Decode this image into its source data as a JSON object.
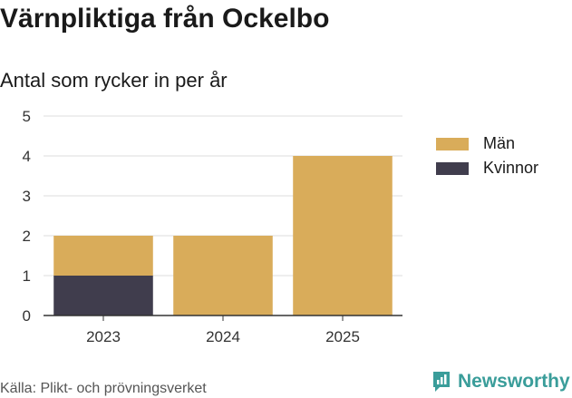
{
  "title": "Värnpliktiga från Ockelbo",
  "subtitle": "Antal som rycker in per år",
  "source": "Källa: Plikt- och prövningsverket",
  "brand": {
    "name": "Newsworthy",
    "icon": "newsworthy-logo-icon",
    "color": "#3a9d9a"
  },
  "colors": {
    "man": "#d9ac5a",
    "kvinnor": "#403d4d",
    "grid": "#dddddd",
    "axis": "#333333"
  },
  "chart_data": {
    "type": "bar",
    "stacked": true,
    "title": "Värnpliktiga från Ockelbo",
    "subtitle": "Antal som rycker in per år",
    "categories": [
      "2023",
      "2024",
      "2025"
    ],
    "series": [
      {
        "name": "Kvinnor",
        "values": [
          1,
          0,
          0
        ]
      },
      {
        "name": "Män",
        "values": [
          1,
          2,
          4
        ]
      }
    ],
    "yticks": [
      0,
      1,
      2,
      3,
      4,
      5
    ],
    "ylim": [
      0,
      5
    ],
    "xlabel": "",
    "ylabel": "",
    "legend": [
      {
        "name": "Män"
      },
      {
        "name": "Kvinnor"
      }
    ],
    "legend_position": "right",
    "grid": true
  }
}
